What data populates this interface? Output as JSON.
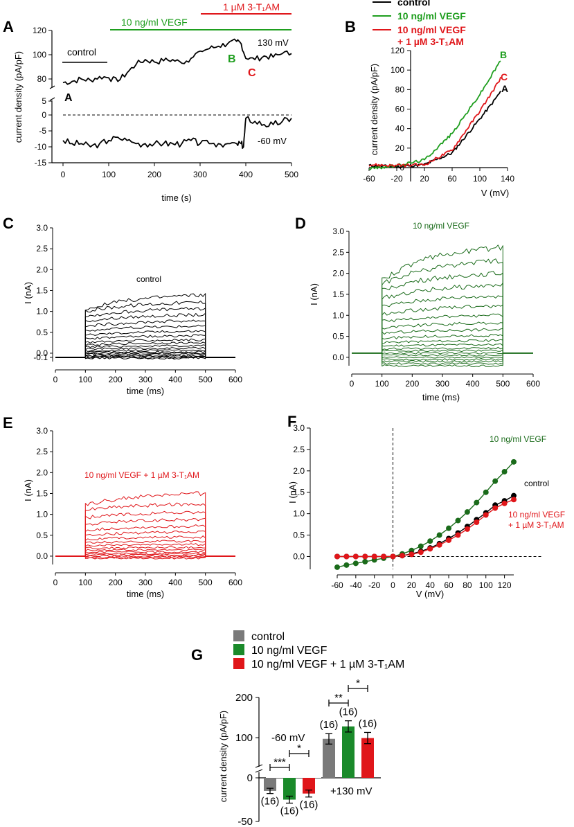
{
  "colors": {
    "control": "#000000",
    "vegf": "#1e9e1e",
    "vegf_dark": "#1a6b1a",
    "tam": "#e0161a",
    "grey": "#7a7a7a",
    "bar_green": "#1a8a2a"
  },
  "chart_data": [
    {
      "id": "A",
      "type": "line",
      "panel_label": "A",
      "ylabel": "current density (pA/pF)",
      "xlabel": "time (s)",
      "xlim": [
        0,
        500
      ],
      "xticks": [
        "0",
        "100",
        "200",
        "300",
        "400",
        "500"
      ],
      "upper_yticks": [
        "80",
        "100",
        "120"
      ],
      "lower_yticks": [
        "5",
        "0",
        "-5",
        "-10",
        "-15"
      ],
      "bars": {
        "control": "control",
        "vegf": "10 ng/ml VEGF",
        "tam": "1 µM 3-T₁AM"
      },
      "annotations": {
        "a": "A",
        "b": "B",
        "c": "C",
        "v130": "130 mV",
        "v60": "-60 mV"
      },
      "series": [
        {
          "name": "+130 mV",
          "x": [
            0,
            20,
            40,
            60,
            80,
            100,
            120,
            140,
            160,
            180,
            200,
            220,
            240,
            260,
            280,
            300,
            320,
            340,
            360,
            380,
            390,
            400,
            420,
            440,
            460,
            480,
            500
          ],
          "values": [
            77,
            78,
            80,
            79,
            82,
            81,
            78,
            85,
            92,
            96,
            94,
            95,
            96,
            93,
            97,
            103,
            105,
            107,
            109,
            111,
            109,
            97,
            96,
            99,
            98,
            101,
            101
          ]
        },
        {
          "name": "-60 mV",
          "x": [
            0,
            20,
            40,
            60,
            80,
            100,
            120,
            140,
            160,
            180,
            200,
            220,
            240,
            260,
            280,
            300,
            320,
            340,
            360,
            380,
            390,
            395,
            400,
            420,
            440,
            460,
            480,
            500
          ],
          "values": [
            -8,
            -9,
            -9,
            -10,
            -9,
            -8,
            -7,
            -8,
            -9,
            -9,
            -9,
            -9,
            -9,
            -9,
            -8,
            -9,
            -9,
            -9,
            -9,
            -9,
            -9,
            -10,
            -1,
            -2,
            -3,
            -3,
            -2,
            -1
          ]
        }
      ]
    },
    {
      "id": "B",
      "type": "line",
      "panel_label": "B",
      "ylabel": "current density (pA/pF)",
      "xlabel": "V (mV)",
      "xlim": [
        -60,
        140
      ],
      "ylim": [
        0,
        120
      ],
      "xticks": [
        "-60",
        "-20",
        "20",
        "60",
        "100",
        "140"
      ],
      "yticks": [
        "0",
        "20",
        "40",
        "60",
        "80",
        "100",
        "120"
      ],
      "legend": [
        "control",
        "10 ng/ml VEGF",
        "10 ng/ml VEGF",
        "+ 1 µM 3-T₁AM"
      ],
      "curve_labels": {
        "a": "A",
        "b": "B",
        "c": "C"
      },
      "series": [
        {
          "name": "control",
          "x": [
            -60,
            -20,
            20,
            60,
            100,
            120,
            130
          ],
          "values": [
            2,
            1,
            3,
            15,
            50,
            68,
            78
          ]
        },
        {
          "name": "10 ng/ml VEGF",
          "x": [
            -60,
            -20,
            20,
            60,
            100,
            120,
            130
          ],
          "values": [
            -1,
            2,
            8,
            35,
            75,
            98,
            110
          ]
        },
        {
          "name": "10 ng/ml VEGF + 1 µM 3-T1AM",
          "x": [
            -60,
            -20,
            20,
            60,
            100,
            120,
            130
          ],
          "values": [
            3,
            2,
            3,
            18,
            58,
            80,
            92
          ]
        }
      ]
    },
    {
      "id": "C",
      "type": "line",
      "panel_label": "C",
      "title": "control",
      "ylabel": "I (nA)",
      "xlabel": "time (ms)",
      "xlim": [
        0,
        600
      ],
      "ylim": [
        -0.2,
        3.0
      ],
      "xticks": [
        "0",
        "100",
        "200",
        "300",
        "400",
        "500",
        "600"
      ],
      "yticks": [
        "-0.1",
        "0.0",
        "0.5",
        "1.0",
        "1.5",
        "2.0",
        "2.5",
        "3.0"
      ],
      "step_start_ms": 100,
      "step_end_ms": 500,
      "holding_nA": -0.1,
      "trace_end_values": [
        -0.12,
        -0.1,
        -0.08,
        -0.06,
        -0.03,
        0.0,
        0.03,
        0.07,
        0.12,
        0.18,
        0.25,
        0.32,
        0.42,
        0.53,
        0.65,
        0.78,
        0.92,
        1.07,
        1.22,
        1.4
      ],
      "trace_start_values": [
        -0.12,
        -0.1,
        -0.08,
        -0.06,
        -0.03,
        0.0,
        0.03,
        0.06,
        0.1,
        0.15,
        0.2,
        0.26,
        0.34,
        0.43,
        0.53,
        0.64,
        0.76,
        0.88,
        1.0,
        1.05
      ]
    },
    {
      "id": "D",
      "type": "line",
      "panel_label": "D",
      "title": "10 ng/ml VEGF",
      "ylabel": "I (nA)",
      "xlabel": "time (ms)",
      "xlim": [
        0,
        600
      ],
      "ylim": [
        -0.2,
        3.0
      ],
      "xticks": [
        "0",
        "100",
        "200",
        "300",
        "400",
        "500",
        "600"
      ],
      "yticks": [
        "0.0",
        "0.5",
        "1.0",
        "1.5",
        "2.0",
        "2.5",
        "3.0"
      ],
      "step_start_ms": 100,
      "step_end_ms": 500,
      "holding_nA": 0.1,
      "trace_end_values": [
        -0.2,
        -0.15,
        -0.1,
        -0.05,
        0.0,
        0.05,
        0.1,
        0.16,
        0.22,
        0.3,
        0.4,
        0.52,
        0.66,
        0.82,
        1.0,
        1.22,
        1.46,
        1.72,
        2.0,
        2.3,
        2.62
      ],
      "trace_start_values": [
        -0.2,
        -0.15,
        -0.1,
        -0.05,
        0.0,
        0.05,
        0.1,
        0.15,
        0.2,
        0.27,
        0.35,
        0.45,
        0.57,
        0.7,
        0.85,
        1.02,
        1.2,
        1.4,
        1.6,
        1.75,
        1.85
      ]
    },
    {
      "id": "E",
      "type": "line",
      "panel_label": "E",
      "title": "10 ng/ml VEGF + 1 µM 3-T₁AM",
      "ylabel": "I (nA)",
      "xlabel": "time (ms)",
      "xlim": [
        0,
        600
      ],
      "ylim": [
        -0.2,
        3.0
      ],
      "xticks": [
        "0",
        "100",
        "200",
        "300",
        "400",
        "500",
        "600"
      ],
      "yticks": [
        "0.0",
        "0.5",
        "1.0",
        "1.5",
        "2.0",
        "2.5",
        "3.0"
      ],
      "step_start_ms": 100,
      "step_end_ms": 500,
      "holding_nA": 0.0,
      "trace_end_values": [
        -0.05,
        -0.03,
        0.0,
        0.03,
        0.06,
        0.1,
        0.15,
        0.21,
        0.28,
        0.36,
        0.46,
        0.58,
        0.72,
        0.88,
        1.05,
        1.25,
        1.5
      ],
      "trace_start_values": [
        -0.05,
        -0.03,
        0.0,
        0.03,
        0.06,
        0.1,
        0.14,
        0.19,
        0.25,
        0.32,
        0.4,
        0.5,
        0.62,
        0.76,
        0.92,
        1.1,
        1.22
      ]
    },
    {
      "id": "F",
      "type": "line",
      "panel_label": "F",
      "ylabel": "I (nA)",
      "xlabel": "V (mV)",
      "xlim": [
        -60,
        130
      ],
      "ylim": [
        -0.3,
        3.0
      ],
      "xticks": [
        "-60",
        "-40",
        "-20",
        "0",
        "20",
        "40",
        "60",
        "80",
        "100",
        "120"
      ],
      "yticks": [
        "0.0",
        "0.5",
        "1.0",
        "1.5",
        "2.0",
        "2.5",
        "3.0"
      ],
      "x": [
        -60,
        -50,
        -40,
        -30,
        -20,
        -10,
        0,
        10,
        20,
        30,
        40,
        50,
        60,
        70,
        80,
        90,
        100,
        110,
        120,
        130
      ],
      "labels": {
        "vegf": "10 ng/ml VEGF",
        "control": "control",
        "tam1": "10 ng/ml VEGF",
        "tam2": "+ 1 µM 3-T₁AM"
      },
      "series": [
        {
          "name": "10 ng/ml VEGF",
          "values": [
            -0.25,
            -0.2,
            -0.16,
            -0.12,
            -0.08,
            -0.04,
            0.0,
            0.06,
            0.14,
            0.24,
            0.36,
            0.5,
            0.66,
            0.84,
            1.04,
            1.26,
            1.5,
            1.76,
            1.98,
            2.21
          ]
        },
        {
          "name": "control",
          "values": [
            0.0,
            0.0,
            0.0,
            0.0,
            0.0,
            0.0,
            0.0,
            0.02,
            0.06,
            0.12,
            0.2,
            0.3,
            0.42,
            0.55,
            0.7,
            0.86,
            1.02,
            1.2,
            1.3,
            1.42
          ]
        },
        {
          "name": "10 ng/ml VEGF + 1 µM 3-T1AM",
          "values": [
            0.0,
            0.0,
            0.0,
            0.0,
            0.0,
            0.0,
            0.0,
            0.02,
            0.05,
            0.1,
            0.18,
            0.27,
            0.38,
            0.5,
            0.64,
            0.8,
            0.97,
            1.13,
            1.24,
            1.33
          ]
        }
      ]
    },
    {
      "id": "G",
      "type": "bar",
      "panel_label": "G",
      "ylabel": "current density (pA/pF)",
      "yticks": [
        "200",
        "100",
        "0",
        "-50"
      ],
      "legend": [
        "control",
        "10 ng/ml VEGF",
        "10 ng/ml VEGF + 1 µM 3-T₁AM"
      ],
      "groups": [
        "-60 mV",
        "+130 mV"
      ],
      "series": [
        {
          "name": "control",
          "values": [
            -15,
            97
          ],
          "errors": [
            3,
            13
          ],
          "n": [
            "(16)",
            "(16)"
          ]
        },
        {
          "name": "10 ng/ml VEGF",
          "values": [
            -25,
            128
          ],
          "errors": [
            4,
            14
          ],
          "n": [
            "(16)",
            "(16)"
          ]
        },
        {
          "name": "10 ng/ml VEGF + 1 µM 3-T1AM",
          "values": [
            -18,
            99
          ],
          "errors": [
            4,
            14
          ],
          "n": [
            "(16)",
            "(16)"
          ]
        }
      ],
      "significance": [
        "***",
        "*",
        "**",
        "*"
      ]
    }
  ]
}
